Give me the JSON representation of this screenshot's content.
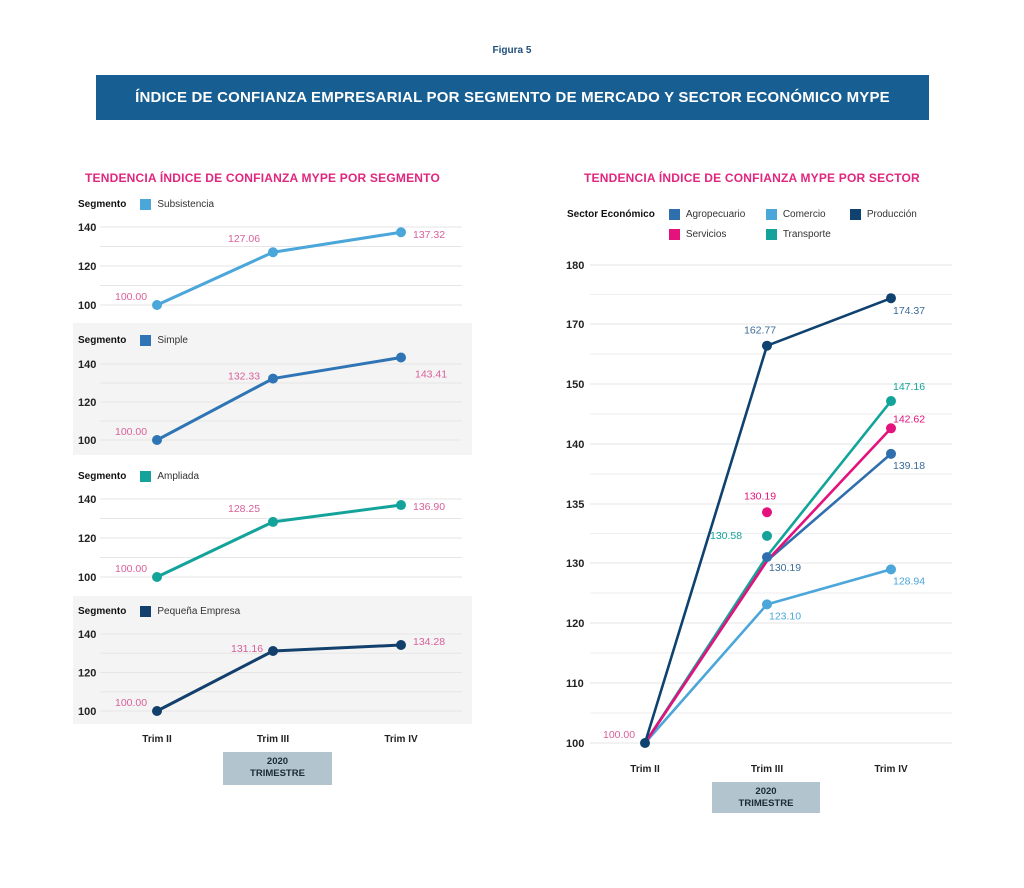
{
  "figure_label": "Figura 5",
  "banner_title": "ÍNDICE DE CONFIANZA EMPRESARIAL POR SEGMENTO DE MERCADO Y SECTOR ECONÓMICO MYPE",
  "colors": {
    "banner": "#175e92",
    "subtitle": "#e0267e",
    "data_label": "#d9609a",
    "subsistencia": "#4ba6d9",
    "simple": "#2f75b5",
    "ampliada": "#14a39a",
    "pequena_empresa": "#123f6b",
    "agropecuario": "#2f6fae",
    "comercio": "#4ba6d9",
    "produccion": "#0f426f",
    "servicios": "#e3127d",
    "transporte": "#14a39a",
    "year_box": "#b2c5ce"
  },
  "chart_data": [
    {
      "type": "line",
      "title": "TENDENCIA ÍNDICE DE CONFIANZA MYPE POR SEGMENTO",
      "legend_title": "Segmento",
      "categories": [
        "Trim II",
        "Trim III",
        "Trim IV"
      ],
      "xlabel": "2020\nTRIMESTRE",
      "xlabel_line1": "2020",
      "xlabel_line2": "TRIMESTRE",
      "panels": [
        {
          "name": "Subsistencia",
          "color": "#4ba6d9",
          "values": [
            100.0,
            127.06,
            137.32
          ],
          "labels": [
            "100.00",
            "127.06",
            "137.32"
          ],
          "yticks": [
            100,
            120,
            140
          ],
          "ylim": [
            100,
            140
          ],
          "shaded": false
        },
        {
          "name": "Simple",
          "color": "#2f75b5",
          "values": [
            100.0,
            132.33,
            143.41
          ],
          "labels": [
            "100.00",
            "132.33",
            "143.41"
          ],
          "yticks": [
            100,
            120,
            140
          ],
          "ylim": [
            100,
            145
          ],
          "shaded": true
        },
        {
          "name": "Ampliada",
          "color": "#14a39a",
          "values": [
            100.0,
            128.25,
            136.9
          ],
          "labels": [
            "100.00",
            "128.25",
            "136.90"
          ],
          "yticks": [
            100,
            120,
            140
          ],
          "ylim": [
            100,
            140
          ],
          "shaded": false
        },
        {
          "name": "Pequeña Empresa",
          "color": "#123f6b",
          "values": [
            100.0,
            131.16,
            134.28
          ],
          "labels": [
            "100.00",
            "131.16",
            "134.28"
          ],
          "yticks": [
            100,
            120,
            140
          ],
          "ylim": [
            100,
            140
          ],
          "shaded": true
        }
      ],
      "grid": true
    },
    {
      "type": "line",
      "title": "TENDENCIA ÍNDICE DE CONFIANZA MYPE POR SECTOR",
      "legend_title": "Sector Económico",
      "categories": [
        "Trim II",
        "Trim III",
        "Trim IV"
      ],
      "xlabel_line1": "2020",
      "xlabel_line2": "TRIMESTRE",
      "yticks": [
        100,
        110,
        120,
        130,
        135,
        140,
        150,
        170,
        180
      ],
      "ylim": [
        100,
        180
      ],
      "grid": true,
      "start_label": "100.00",
      "series": [
        {
          "name": "Agropecuario",
          "color": "#2f6fae",
          "values": [
            100.0,
            130.19,
            139.18
          ],
          "labels": [
            "",
            "130.19",
            "139.18"
          ]
        },
        {
          "name": "Comercio",
          "color": "#4ba6d9",
          "values": [
            100.0,
            123.1,
            128.94
          ],
          "labels": [
            "",
            "123.10",
            "128.94"
          ]
        },
        {
          "name": "Producción",
          "color": "#0f426f",
          "values": [
            100.0,
            162.77,
            174.37
          ],
          "labels": [
            "",
            "162.77",
            "174.37"
          ]
        },
        {
          "name": "Servicios",
          "color": "#e3127d",
          "values": [
            100.0,
            130.19,
            142.62
          ],
          "labels": [
            "",
            "130.19",
            "142.62"
          ]
        },
        {
          "name": "Transporte",
          "color": "#14a39a",
          "values": [
            100.0,
            130.58,
            147.16
          ],
          "labels": [
            "",
            "130.58",
            "147.16"
          ]
        }
      ]
    }
  ]
}
